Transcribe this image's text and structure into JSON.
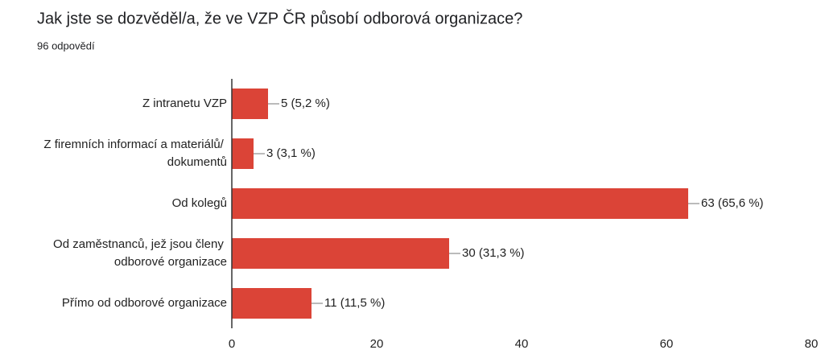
{
  "chart_data": {
    "type": "barh",
    "title": "Jak jste se dozvěděl/a, že ve VZP ČR působí odborová organizace?",
    "subtitle": "96 odpovědí",
    "categories": [
      "Z intranetu VZP",
      "Z firemních informací a materiálů/ dokumentů",
      "Od kolegů",
      "Od zaměstnanců, jež jsou členy odborové organizace",
      "Přímo od odborové organizace"
    ],
    "values": [
      5,
      3,
      63,
      30,
      11
    ],
    "value_labels": [
      "5 (5,2 %)",
      "3 (3,1 %)",
      "63 (65,6 %)",
      "30 (31,3 %)",
      "11 (11,5 %)"
    ],
    "color": "#db4437",
    "xlim": [
      0,
      80
    ],
    "xticks": [
      0,
      20,
      40,
      60,
      80
    ],
    "grid": false
  }
}
